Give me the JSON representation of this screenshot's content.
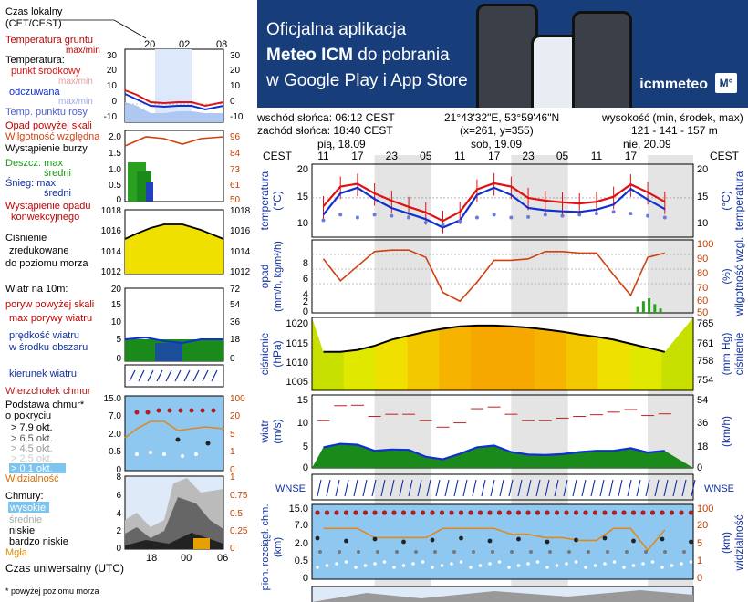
{
  "banner": {
    "line1": "Oficjalna aplikacja",
    "line2_bold": "Meteo ICM",
    "line2_rest": " do pobrania",
    "line3": "w Google Play i App Store",
    "brand": "icmmeteo",
    "badge": "M°"
  },
  "info": {
    "sunrise": "wschód słońca: 06:12 CEST",
    "sunset": "zachód słońca: 18:40 CEST",
    "coords": "21°43'32\"E, 53°59'46\"N",
    "grid": "(x=261, y=355)",
    "height_label": "wysokość (min, środek, max)",
    "height_values": "121 - 141 - 157 m"
  },
  "legend": {
    "local_time": "Czas lokalny",
    "local_time_tz": "(CET/CEST)",
    "local_ticks": [
      "20",
      "02",
      "08"
    ],
    "soil_temp": "Temperatura gruntu",
    "soil_minmax": "max/min",
    "temp": "Temperatura:",
    "dew_center": "punkt środkowy",
    "temp_max_min": "max/min",
    "feels": "odczuwana",
    "feels_max_min": "max/min",
    "dewpoint": "Temp. punktu rosy",
    "temp_ticks": [
      "30",
      "20",
      "10",
      "0",
      "-10"
    ],
    "precip_above": "Opad powyżej skali",
    "humidity": "Wilgotność względna",
    "storm": "Wystąpienie burzy",
    "rain": "Deszcz: max",
    "rain_mid": "średni",
    "snow": "Śnieg: max",
    "snow_mid": "średni",
    "precip_occur": "Wystąpienie opadu",
    "precip_occur2": "konwekcyjnego",
    "precip_ticks_l": [
      "2.0",
      "1.5",
      "1.0",
      "0.5",
      "0"
    ],
    "precip_ticks_r": [
      "96",
      "84",
      "73",
      "61",
      "50"
    ],
    "pressure": "Ciśnienie",
    "pressure2": "zredukowane",
    "pressure3": "do poziomu morza",
    "pressure_ticks": [
      "1018",
      "1016",
      "1014",
      "1012"
    ],
    "wind_label": "Wiatr na 10m:",
    "gusts_above": "poryw powyżej skali",
    "gusts_max": "max porywy wiatru",
    "wind_speed": "prędkość wiatru",
    "wind_speed2": "w środku obszaru",
    "wind_ticks_l": [
      "20",
      "15",
      "10",
      "5",
      "0"
    ],
    "wind_ticks_r": [
      "72",
      "54",
      "36",
      "18",
      "0"
    ],
    "wind_dir": "kierunek wiatru",
    "cloud_top": "Wierzchołek chmur",
    "cloud_base": "Podstawa chmur*",
    "cloud_base2": "o pokryciu",
    "okt1": "> 7.9 okt.",
    "okt2": "> 6.5 okt.",
    "okt3": "> 4.5 okt.",
    "okt4": "> 2.5 okt.",
    "okt5": "> 0.1 okt.",
    "cloud_ticks_l": [
      "15.0",
      "7.0",
      "2.0",
      "0.5",
      "0"
    ],
    "cloud_ticks_r": [
      "100",
      "20",
      "5",
      "1",
      "0"
    ],
    "visibility": "Widzialność",
    "clouds": "Chmury:",
    "cl_high": "wysokie",
    "cl_mid": "średnie",
    "cl_low": "niskie",
    "cl_vlow": "bardzo niskie",
    "fog": "Mgła",
    "clouds_ticks_l": [
      "8",
      "6",
      "4",
      "2",
      "0"
    ],
    "clouds_ticks_r": [
      "1",
      "0.75",
      "0.5",
      "0.25",
      "0"
    ],
    "utc": "Czas uniwersalny (UTC)",
    "utc_ticks": [
      "18",
      "00",
      "06"
    ],
    "footnote": "* powyżej poziomu morza"
  },
  "main": {
    "tz": "CEST",
    "days": [
      "pią, 18.09",
      "sob, 19.09",
      "nie, 20.09"
    ],
    "hour_ticks": [
      "11",
      "17",
      "23",
      "05",
      "11",
      "17",
      "23",
      "05",
      "11",
      "17"
    ],
    "temp_axis": "temperatura",
    "temp_unit": "(°C)",
    "temp_ticks": [
      "20",
      "15",
      "10"
    ],
    "precip_axis": "opad",
    "precip_unit": "(mm/h, kg/m²/h)",
    "humidity_axis": "wilgotność wzgl.",
    "humidity_unit": "(%)",
    "precip_ticks_l": [
      "8",
      "6",
      "4",
      "2",
      "0"
    ],
    "precip_ticks_r": [
      "100",
      "90",
      "80",
      "70",
      "60",
      "50"
    ],
    "pressure_axis": "ciśnienie",
    "pressure_unit": "(hPa)",
    "pressure_axis_r": "ciśnienie",
    "pressure_unit_r": "(mm Hg)",
    "pressure_ticks_l": [
      "1020",
      "1015",
      "1010",
      "1005"
    ],
    "pressure_ticks_r": [
      "765",
      "761",
      "758",
      "754"
    ],
    "wind_axis": "wiatr",
    "wind_unit": "(m/s)",
    "wind_unit_r": "(km/h)",
    "wind_ticks_l": [
      "15",
      "10",
      "5",
      "0"
    ],
    "wind_ticks_r": [
      "54",
      "36",
      "18",
      "0"
    ],
    "compass": "WNSE",
    "cloud_axis": "pion. rozciągł. chm.",
    "cloud_unit": "(km)",
    "vis_axis": "widzialność",
    "vis_unit": "(km)",
    "cloud_ticks_l": [
      "15.0",
      "7.0",
      "2.0",
      "0.5",
      "0"
    ],
    "cloud_ticks_r": [
      "100",
      "20",
      "5",
      "1",
      "0"
    ]
  },
  "colors": {
    "temp": "#e01010",
    "feels": "#1030d0",
    "dewpoint": "#6a7ae0",
    "humidity": "#d04010",
    "rain": "#2aa020",
    "pressure_fill": "#f0e000",
    "wind_fill": "#1a8a1a",
    "sky": "#8ec8f0",
    "banner": "#173d7a"
  },
  "chart_data": [
    {
      "type": "line",
      "panel": "temperature",
      "xlabel": "",
      "ylabel": "temperatura (°C)",
      "ylim": [
        8,
        21
      ],
      "x_hours": [
        11,
        14,
        17,
        20,
        23,
        26,
        29,
        32,
        35,
        38,
        41,
        44,
        47,
        50,
        53,
        56,
        59,
        62,
        65,
        68,
        71
      ],
      "series": [
        {
          "values": [
            13.5,
            17.0,
            17.5,
            15.8,
            14.5,
            13.4,
            12.4,
            10.9,
            12.5,
            16.5,
            17.6,
            17.0,
            15.0,
            14.5,
            14.2,
            14.0,
            14.3,
            15.2,
            17.4,
            16.0,
            14.3
          ]
        },
        {
          "values": [
            12.0,
            15.8,
            16.8,
            14.8,
            13.2,
            12.2,
            11.2,
            9.7,
            11.0,
            15.5,
            16.8,
            15.5,
            13.2,
            12.8,
            12.6,
            12.5,
            12.9,
            13.8,
            16.6,
            14.7,
            13.0
          ]
        },
        {
          "values": [
            11.0,
            12.0,
            11.5,
            12.0,
            11.8,
            11.5,
            10.6,
            10.2,
            10.8,
            11.5,
            12.0,
            11.5,
            11.6,
            12.0,
            11.8,
            12.0,
            12.2,
            12.5,
            12.2,
            11.8,
            11.5
          ]
        }
      ]
    },
    {
      "type": "line",
      "panel": "precipitation_humidity",
      "ylabel": "opad (mm/h, kg/m²/h)",
      "ylim": [
        0,
        9
      ],
      "humidity_ylim": [
        50,
        100
      ],
      "x_hours": [
        11,
        14,
        17,
        20,
        23,
        26,
        29,
        32,
        35,
        38,
        41,
        44,
        47,
        50,
        53,
        56,
        59,
        62,
        65,
        68,
        71
      ],
      "series": [
        {
          "values": [
            87,
            72,
            82,
            92,
            93,
            93,
            88,
            64,
            58,
            71,
            86,
            86,
            87,
            92,
            92,
            91,
            91,
            76,
            62,
            88,
            91
          ]
        }
      ]
    },
    {
      "type": "area",
      "panel": "pressure",
      "ylabel": "ciśnienie (hPa)",
      "ylim": [
        1003,
        1021
      ],
      "x_hours": [
        11,
        14,
        17,
        20,
        23,
        26,
        29,
        32,
        35,
        38,
        41,
        44,
        47,
        50,
        53,
        56,
        59,
        62,
        65,
        68,
        71
      ],
      "series": [
        {
          "values": [
            1012.5,
            1012.5,
            1013.0,
            1014.0,
            1015.5,
            1016.5,
            1017.5,
            1018.2,
            1018.8,
            1019.0,
            1019.0,
            1018.8,
            1018.5,
            1018.0,
            1017.5,
            1016.8,
            1016.2,
            1015.5,
            1014.5,
            1013.5,
            1012.5
          ]
        }
      ]
    },
    {
      "type": "area",
      "panel": "wind",
      "ylabel": "wiatr (m/s)",
      "ylim": [
        0,
        17
      ],
      "x_hours": [
        11,
        14,
        17,
        20,
        23,
        26,
        29,
        32,
        35,
        38,
        41,
        44,
        47,
        50,
        53,
        56,
        59,
        62,
        65,
        68,
        71
      ],
      "series": [
        {
          "values": [
            4.8,
            5.6,
            5.4,
            4.0,
            4.3,
            4.2,
            2.6,
            2.0,
            3.3,
            4.8,
            5.2,
            3.7,
            3.1,
            3.0,
            3.2,
            3.7,
            4.0,
            4.0,
            4.6,
            3.6,
            4.0
          ]
        },
        {
          "values": [
            11.0,
            14.5,
            14.6,
            12.0,
            12.5,
            12.5,
            11.0,
            9.5,
            10.5,
            13.8,
            14.2,
            12.5,
            11.0,
            11.0,
            11.6,
            12.0,
            12.4,
            13.0,
            13.6,
            12.2,
            12.6
          ]
        }
      ]
    },
    {
      "type": "line",
      "panel": "visibility",
      "ylabel": "widzialność (km)",
      "x_hours": [
        11,
        14,
        17,
        20,
        23,
        26,
        29,
        32,
        35,
        38,
        41,
        44,
        47,
        50,
        53,
        56,
        59,
        62,
        65,
        68,
        71
      ],
      "series": [
        {
          "values": [
            22,
            22,
            22,
            12,
            12,
            12,
            12,
            22,
            22,
            22,
            22,
            15,
            15,
            12,
            12,
            10,
            10,
            22,
            22,
            5,
            20
          ]
        }
      ]
    }
  ]
}
